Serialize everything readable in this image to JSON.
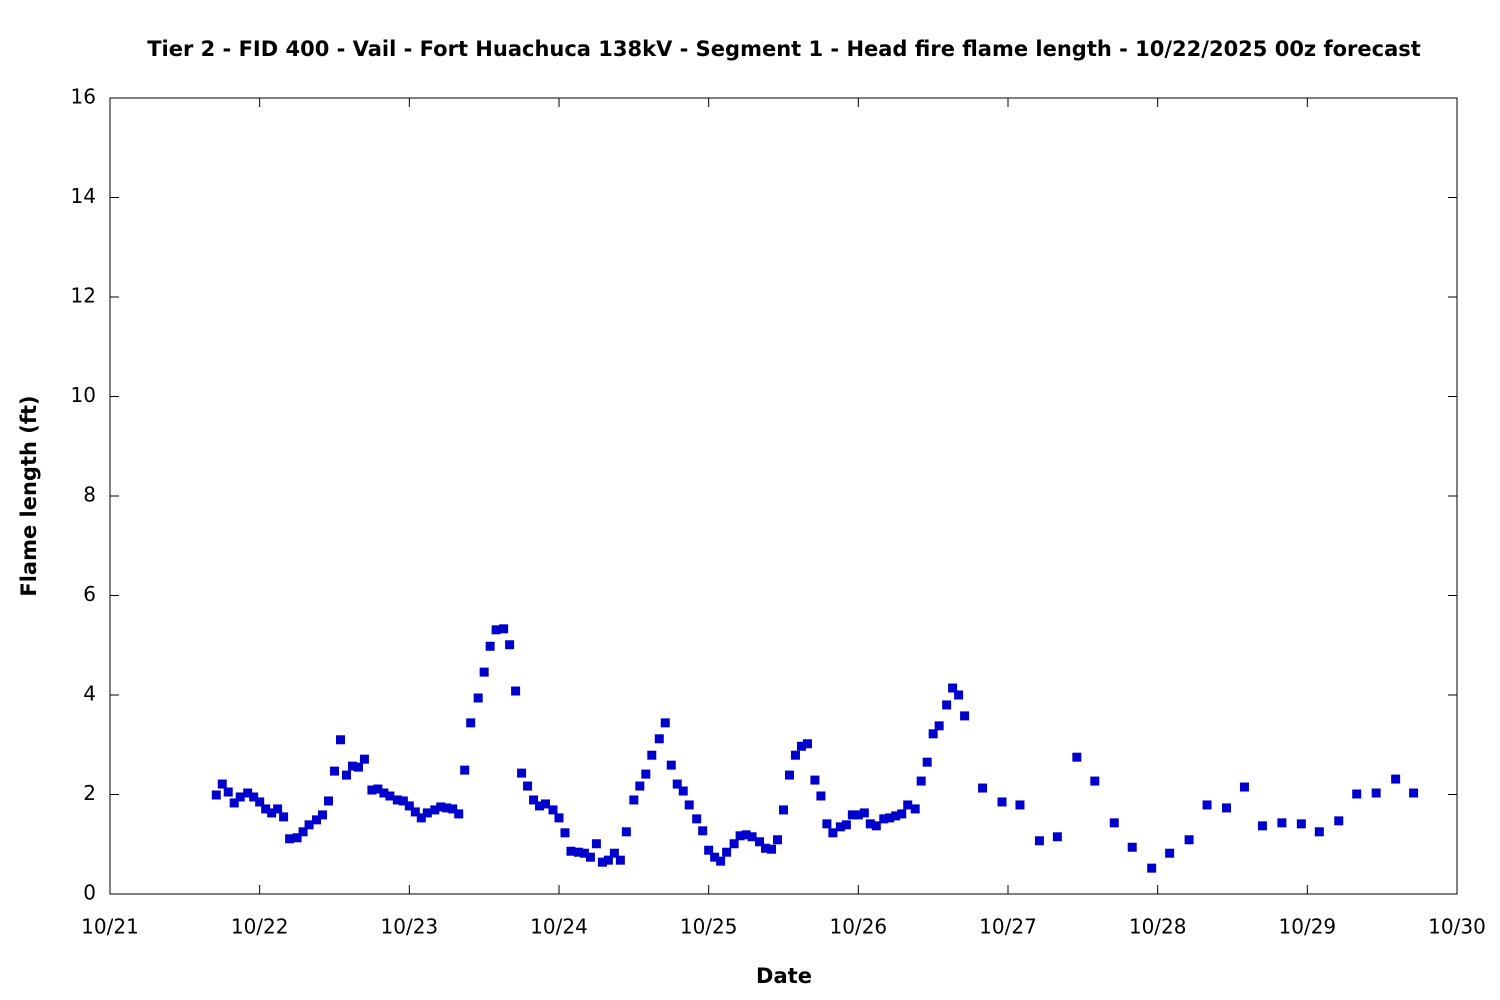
{
  "chart_data": {
    "type": "scatter",
    "title": "Tier 2 - FID 400 - Vail - Fort Huachuca 138kV - Segment 1 - Head fire flame length - 10/22/2025 00z forecast",
    "x_label": "Date",
    "y_label": "Flame length (ft)",
    "color": "#0000cc",
    "grid": false,
    "xlim": [
      0,
      9
    ],
    "xticks": [
      {
        "value": 0,
        "label": "10/21"
      },
      {
        "value": 1,
        "label": "10/22"
      },
      {
        "value": 2,
        "label": "10/23"
      },
      {
        "value": 3,
        "label": "10/24"
      },
      {
        "value": 4,
        "label": "10/25"
      },
      {
        "value": 5,
        "label": "10/26"
      },
      {
        "value": 6,
        "label": "10/27"
      },
      {
        "value": 7,
        "label": "10/28"
      },
      {
        "value": 8,
        "label": "10/29"
      },
      {
        "value": 9,
        "label": "10/30"
      }
    ],
    "ylim": [
      0,
      16
    ],
    "yticks": [
      0,
      2,
      4,
      6,
      8,
      10,
      12,
      14,
      16
    ],
    "x": [
      0.71,
      0.75,
      0.79,
      0.83,
      0.87,
      0.92,
      0.96,
      1.0,
      1.04,
      1.08,
      1.12,
      1.16,
      1.2,
      1.25,
      1.29,
      1.33,
      1.38,
      1.42,
      1.46,
      1.5,
      1.54,
      1.58,
      1.62,
      1.66,
      1.7,
      1.75,
      1.79,
      1.83,
      1.87,
      1.92,
      1.96,
      2.0,
      2.04,
      2.08,
      2.12,
      2.17,
      2.21,
      2.25,
      2.29,
      2.33,
      2.37,
      2.41,
      2.46,
      2.5,
      2.54,
      2.58,
      2.63,
      2.67,
      2.71,
      2.75,
      2.79,
      2.83,
      2.87,
      2.91,
      2.96,
      3.0,
      3.04,
      3.08,
      3.13,
      3.17,
      3.21,
      3.25,
      3.29,
      3.33,
      3.37,
      3.41,
      3.45,
      3.5,
      3.54,
      3.58,
      3.62,
      3.67,
      3.71,
      3.75,
      3.79,
      3.83,
      3.87,
      3.92,
      3.96,
      4.0,
      4.04,
      4.08,
      4.12,
      4.17,
      4.21,
      4.25,
      4.29,
      4.34,
      4.38,
      4.42,
      4.46,
      4.5,
      4.54,
      4.58,
      4.62,
      4.66,
      4.71,
      4.75,
      4.79,
      4.83,
      4.88,
      4.92,
      4.96,
      5.0,
      5.04,
      5.08,
      5.12,
      5.17,
      5.21,
      5.25,
      5.29,
      5.33,
      5.38,
      5.42,
      5.46,
      5.5,
      5.54,
      5.59,
      5.63,
      5.67,
      5.71,
      5.83,
      5.96,
      6.08,
      6.21,
      6.33,
      6.46,
      6.58,
      6.71,
      6.83,
      6.96,
      7.08,
      7.21,
      7.33,
      7.46,
      7.58,
      7.7,
      7.83,
      7.96,
      8.08,
      8.21,
      8.33,
      8.46,
      8.59,
      8.71
    ],
    "values": [
      1.99,
      2.21,
      2.05,
      1.83,
      1.95,
      2.03,
      1.95,
      1.85,
      1.71,
      1.63,
      1.71,
      1.55,
      1.11,
      1.13,
      1.25,
      1.39,
      1.49,
      1.59,
      1.87,
      2.47,
      3.1,
      2.39,
      2.57,
      2.55,
      2.71,
      2.09,
      2.11,
      2.03,
      1.97,
      1.89,
      1.87,
      1.77,
      1.65,
      1.53,
      1.63,
      1.69,
      1.75,
      1.73,
      1.71,
      1.61,
      2.49,
      3.44,
      3.94,
      4.46,
      4.98,
      5.31,
      5.33,
      5.01,
      4.08,
      2.43,
      2.17,
      1.89,
      1.77,
      1.81,
      1.69,
      1.53,
      1.23,
      0.86,
      0.84,
      0.82,
      0.74,
      1.01,
      0.64,
      0.68,
      0.82,
      0.68,
      1.25,
      1.89,
      2.17,
      2.41,
      2.79,
      3.12,
      3.44,
      2.59,
      2.21,
      2.07,
      1.79,
      1.51,
      1.27,
      0.88,
      0.74,
      0.66,
      0.84,
      1.01,
      1.17,
      1.19,
      1.15,
      1.05,
      0.92,
      0.9,
      1.09,
      1.69,
      2.39,
      2.79,
      2.97,
      3.02,
      2.29,
      1.97,
      1.41,
      1.23,
      1.35,
      1.39,
      1.59,
      1.59,
      1.63,
      1.41,
      1.37,
      1.51,
      1.53,
      1.57,
      1.61,
      1.79,
      1.71,
      2.27,
      2.65,
      3.22,
      3.38,
      3.8,
      4.14,
      4.0,
      3.58,
      2.13,
      1.85,
      1.79,
      1.07,
      1.15,
      2.75,
      2.27,
      1.43,
      0.94,
      0.52,
      0.82,
      1.09,
      1.79,
      1.73,
      2.15,
      1.37,
      1.43,
      1.41,
      1.25,
      1.47,
      2.01,
      2.03,
      2.31,
      2.03
    ]
  }
}
